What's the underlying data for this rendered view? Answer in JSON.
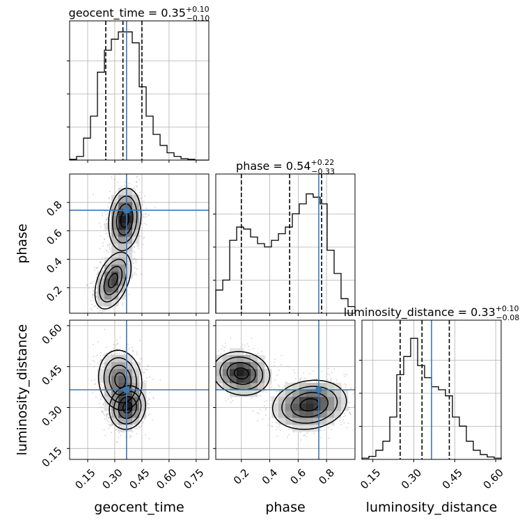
{
  "colors": {
    "truth": "#3b78b4",
    "hist": "#000000",
    "grid": "#b0b0b0",
    "scatter": "#9a9a9a"
  },
  "chart_data": {
    "type": "corner",
    "grid": true,
    "parameters": [
      "geocent_time",
      "phase",
      "luminosity_distance"
    ],
    "truths": {
      "geocent_time": 0.365,
      "phase": 0.745,
      "luminosity_distance": 0.365
    },
    "axes": {
      "geocent_time": {
        "range": [
          0.05,
          0.82
        ],
        "ticks": [
          "0.15",
          "0.30",
          "0.45",
          "0.60",
          "0.75"
        ]
      },
      "phase": {
        "range": [
          0.02,
          1.0
        ],
        "ticks": [
          "0.2",
          "0.4",
          "0.6",
          "0.8"
        ]
      },
      "luminosity_distance": {
        "range": [
          0.11,
          0.62
        ],
        "ticks": [
          "0.15",
          "0.30",
          "0.45",
          "0.60"
        ]
      }
    },
    "marginals": [
      {
        "param": "geocent_time",
        "title_name": "geocent_time = 0.35",
        "title_plus": "+0.10",
        "title_minus": "−0.10",
        "quantiles": [
          0.25,
          0.345,
          0.45
        ],
        "bin_edges": [
          0.05,
          0.0885,
          0.127,
          0.1655,
          0.204,
          0.2425,
          0.281,
          0.3195,
          0.358,
          0.3965,
          0.435,
          0.4735,
          0.512,
          0.5505,
          0.589,
          0.6275,
          0.666,
          0.7045,
          0.743,
          0.7815,
          0.82
        ],
        "counts": [
          1,
          5,
          30,
          60,
          120,
          150,
          165,
          175,
          175,
          160,
          100,
          60,
          35,
          20,
          10,
          5,
          2,
          1,
          0,
          0
        ],
        "ymax": 190
      },
      {
        "param": "phase",
        "title_name": "phase = 0.54",
        "title_plus": "+0.22",
        "title_minus": "−0.33",
        "quantiles": [
          0.2,
          0.54,
          0.765
        ],
        "bin_edges": [
          0.02,
          0.069,
          0.118,
          0.167,
          0.216,
          0.265,
          0.314,
          0.363,
          0.412,
          0.461,
          0.51,
          0.559,
          0.608,
          0.657,
          0.706,
          0.755,
          0.804,
          0.853,
          0.902,
          0.951,
          1.0
        ],
        "counts": [
          35,
          50,
          110,
          130,
          127,
          115,
          105,
          100,
          110,
          120,
          130,
          150,
          165,
          180,
          175,
          165,
          95,
          60,
          22,
          10
        ],
        "ymax": 210
      },
      {
        "param": "luminosity_distance",
        "title_name": "luminosity_distance = 0.33",
        "title_plus": "+0.10",
        "title_minus": "−0.08",
        "quantiles": [
          0.25,
          0.33,
          0.43
        ],
        "bin_edges": [
          0.11,
          0.1355,
          0.161,
          0.1865,
          0.212,
          0.2375,
          0.263,
          0.2885,
          0.314,
          0.3395,
          0.365,
          0.3905,
          0.416,
          0.4415,
          0.467,
          0.4925,
          0.518,
          0.5435,
          0.569,
          0.5945,
          0.62
        ],
        "counts": [
          2,
          5,
          15,
          30,
          70,
          140,
          170,
          200,
          155,
          135,
          120,
          115,
          105,
          70,
          55,
          30,
          15,
          8,
          4,
          2
        ],
        "ymax": 230
      }
    ],
    "joint_panels": [
      {
        "x": "geocent_time",
        "y": "phase",
        "components": [
          {
            "weight": 0.58,
            "mx": 0.355,
            "my": 0.68,
            "sx": 0.045,
            "sy": 0.11,
            "rho": 0.15
          },
          {
            "weight": 0.42,
            "mx": 0.29,
            "my": 0.25,
            "sx": 0.05,
            "sy": 0.1,
            "rho": 0.45
          }
        ]
      },
      {
        "x": "geocent_time",
        "y": "luminosity_distance",
        "components": [
          {
            "weight": 0.55,
            "mx": 0.33,
            "my": 0.4,
            "sx": 0.06,
            "sy": 0.055,
            "rho": -0.1
          },
          {
            "weight": 0.45,
            "mx": 0.37,
            "my": 0.3,
            "sx": 0.05,
            "sy": 0.04,
            "rho": 0.1
          }
        ]
      },
      {
        "x": "phase",
        "y": "luminosity_distance",
        "components": [
          {
            "weight": 0.42,
            "mx": 0.2,
            "my": 0.425,
            "sx": 0.1,
            "sy": 0.04,
            "rho": -0.1
          },
          {
            "weight": 0.58,
            "mx": 0.68,
            "my": 0.31,
            "sx": 0.13,
            "sy": 0.045,
            "rho": 0.15
          }
        ]
      }
    ]
  }
}
